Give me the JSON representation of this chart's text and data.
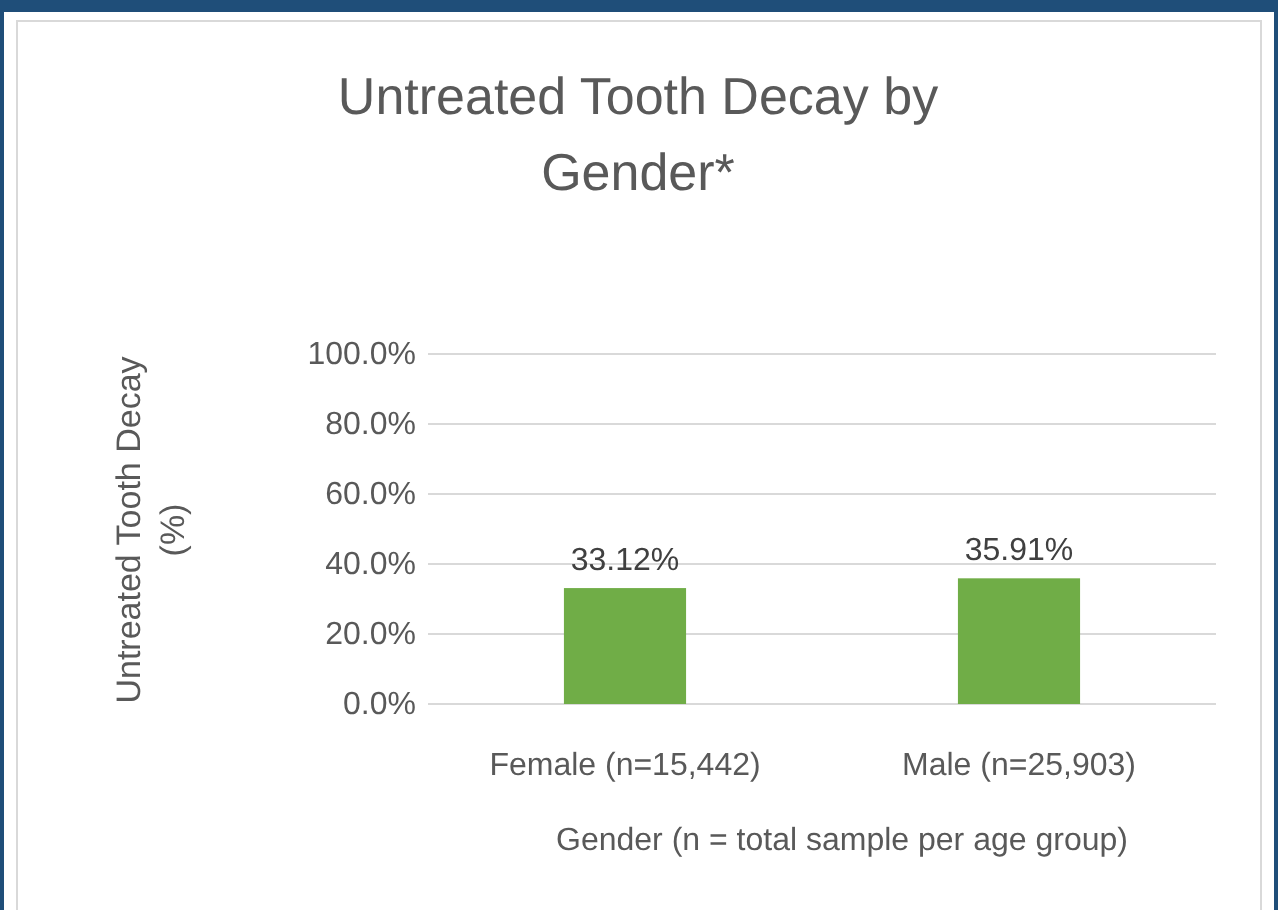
{
  "chart_data": {
    "type": "bar",
    "title": "Untreated Tooth Decay by Gender*",
    "xlabel": "Gender (n = total sample per age group)",
    "ylabel": "Untreated Tooth Decay (%)",
    "categories": [
      "Female (n=15,442)",
      "Male (n=25,903)"
    ],
    "series": [
      {
        "color": "#70ad47",
        "values": [
          33.12,
          35.91
        ],
        "value_labels": [
          "33.12%",
          "35.91%"
        ]
      }
    ],
    "ylim": [
      0,
      100
    ],
    "yticks": [
      {
        "value": 0,
        "label": "0.0%"
      },
      {
        "value": 20,
        "label": "20.0%"
      },
      {
        "value": 40,
        "label": "40.0%"
      },
      {
        "value": 60,
        "label": "60.0%"
      },
      {
        "value": 80,
        "label": "80.0%"
      },
      {
        "value": 100,
        "label": "100.0%"
      }
    ],
    "grid": "y"
  }
}
